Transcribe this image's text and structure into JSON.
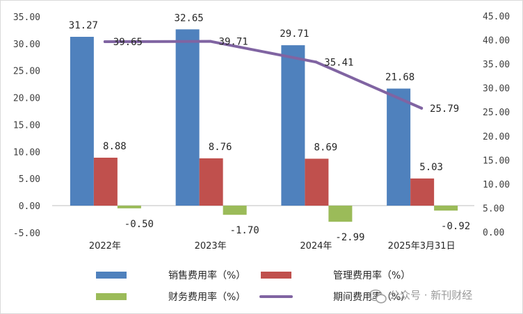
{
  "chart_data": {
    "type": "bar",
    "categories": [
      "2022年",
      "2023年",
      "2024年",
      "2025年3月31日"
    ],
    "series": [
      {
        "name": "销售费用率（%）",
        "type": "bar",
        "axis": "left",
        "color": "#4f81bd",
        "values": [
          31.27,
          32.65,
          29.71,
          21.68
        ],
        "labels": [
          "31.27",
          "32.65",
          "29.71",
          "21.68"
        ]
      },
      {
        "name": "管理费用率（%）",
        "type": "bar",
        "axis": "left",
        "color": "#c0504d",
        "values": [
          8.88,
          8.76,
          8.69,
          5.03
        ],
        "labels": [
          "8.88",
          "8.76",
          "8.69",
          "5.03"
        ]
      },
      {
        "name": "财务费用率（%）",
        "type": "bar",
        "axis": "left",
        "color": "#9bbb59",
        "values": [
          -0.5,
          -1.7,
          -2.99,
          -0.92
        ],
        "labels": [
          "-0.50",
          "-1.70",
          "-2.99",
          "-0.92"
        ]
      },
      {
        "name": "期间费用率（%）",
        "type": "line",
        "axis": "right",
        "color": "#8064a2",
        "values": [
          39.65,
          39.71,
          35.41,
          25.79
        ],
        "labels": [
          "39.65",
          "39.71",
          "35.41",
          "25.79"
        ]
      }
    ],
    "y_left": {
      "ylim": [
        -5,
        35
      ],
      "ticks": [
        "-5.00",
        "0.00",
        "5.00",
        "10.00",
        "15.00",
        "20.00",
        "25.00",
        "30.00",
        "35.00"
      ]
    },
    "y_right": {
      "ylim": [
        0,
        45
      ],
      "ticks": [
        "0.00",
        "5.00",
        "10.00",
        "15.00",
        "20.00",
        "25.00",
        "30.00",
        "35.00",
        "40.00",
        "45.00"
      ]
    },
    "grid": false,
    "legend_position": "bottom"
  },
  "watermark": {
    "text": "公众号 · 新刊财经",
    "icon": "wechat-icon"
  }
}
